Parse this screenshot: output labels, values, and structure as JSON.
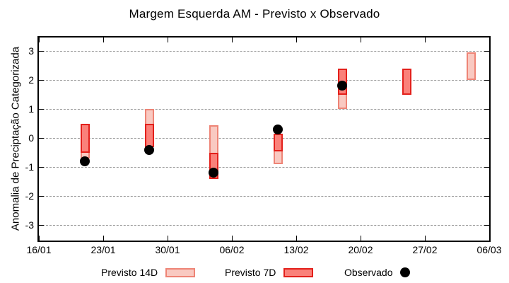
{
  "chart_data": {
    "type": "bar",
    "subtype": "floating-range-bars-with-scatter",
    "title": "Margem Esquerda AM - Previsto x Observado",
    "xlabel": "",
    "ylabel": "Anomalia de Preciptação Categorizada",
    "ylim": [
      -3.53,
      3.47
    ],
    "y_ticks": [
      3,
      2,
      1,
      0,
      -1,
      -2,
      -3
    ],
    "x_tick_labels": [
      "16/01",
      "23/01",
      "30/01",
      "06/02",
      "13/02",
      "20/02",
      "27/02",
      "06/03"
    ],
    "x_tick_interval_days": 7,
    "grid": "dashed horizontal at integer y values",
    "legend_position": "below plot, horizontal",
    "groups": [
      {
        "date": "21/01",
        "x_day": 5,
        "previsto_14d": [
          -0.7,
          0.5
        ],
        "previsto_7d": [
          -0.5,
          0.5
        ],
        "observado": -0.8
      },
      {
        "date": "28/01",
        "x_day": 12,
        "previsto_14d": [
          -0.3,
          1.0
        ],
        "previsto_7d": [
          -0.3,
          0.5
        ],
        "observado": -0.4
      },
      {
        "date": "04/02",
        "x_day": 19,
        "previsto_14d": [
          -1.4,
          0.45
        ],
        "previsto_7d": [
          -1.4,
          -0.5
        ],
        "observado": -1.2
      },
      {
        "date": "11/02",
        "x_day": 26,
        "previsto_14d": [
          -0.9,
          0.15
        ],
        "previsto_7d": [
          -0.45,
          0.15
        ],
        "observado": 0.3
      },
      {
        "date": "18/02",
        "x_day": 33,
        "previsto_14d": [
          1.0,
          2.4
        ],
        "previsto_7d": [
          1.5,
          2.4
        ],
        "observado": 1.8
      },
      {
        "date": "25/02",
        "x_day": 40,
        "previsto_14d": null,
        "previsto_7d": [
          1.5,
          2.4
        ],
        "observado": null
      },
      {
        "date": "04/03",
        "x_day": 47,
        "previsto_14d": [
          2.0,
          2.95
        ],
        "previsto_7d": null,
        "observado": null
      }
    ],
    "legend": [
      {
        "label": "Previsto 14D",
        "type": "box",
        "fill": "#f9c9c1",
        "border": "#ee8476"
      },
      {
        "label": "Previsto 7D",
        "type": "box",
        "fill": "#fa817a",
        "border": "#e3201b"
      },
      {
        "label": "Observado",
        "type": "dot",
        "color": "#000000"
      }
    ],
    "colors": {
      "previsto_14d_fill": "#f9c9c1",
      "previsto_14d_border": "#ee8476",
      "previsto_7d_fill": "#fa817a",
      "previsto_7d_border": "#e3201b",
      "observado": "#000000",
      "grid": "#9a9a9a",
      "axis": "#000000",
      "background": "#ffffff"
    }
  }
}
